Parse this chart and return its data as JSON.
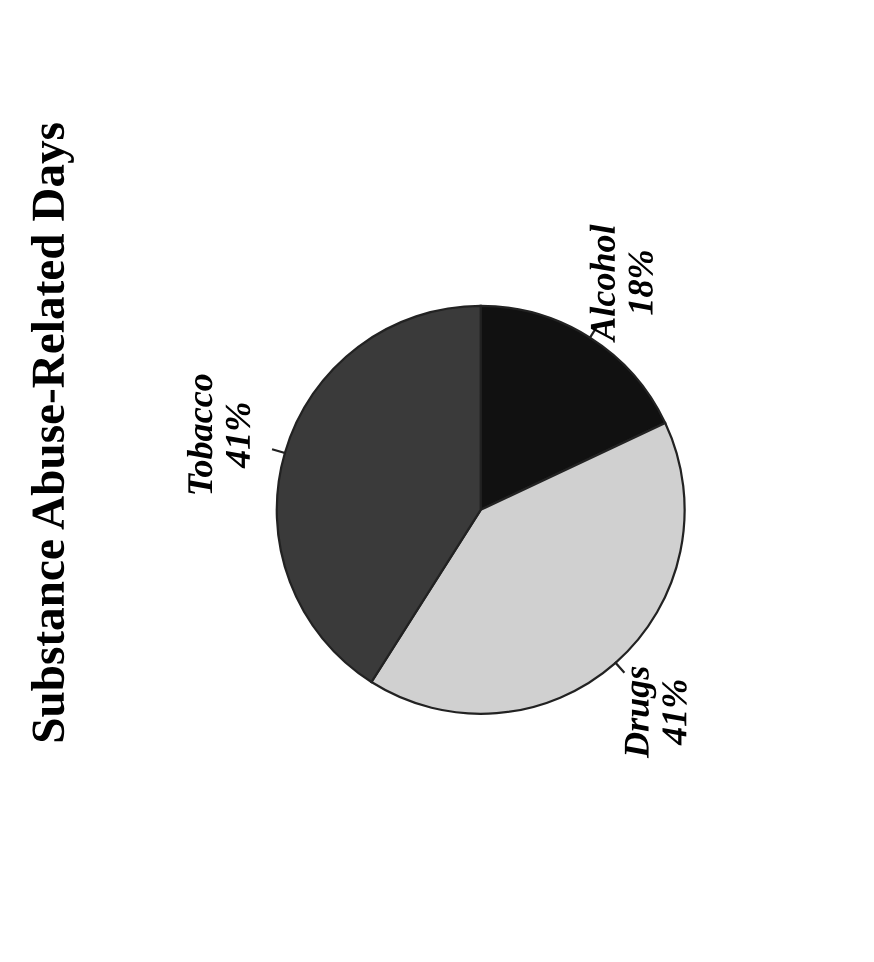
{
  "chart_data": {
    "type": "pie",
    "title": "Substance Abuse-Related Days",
    "categories": [
      "Alcohol",
      "Drugs",
      "Tobacco"
    ],
    "values": [
      18,
      41,
      41
    ],
    "value_labels": [
      "18%",
      "41%",
      "41%"
    ],
    "colors": [
      "#111111",
      "#d0d0d0",
      "#3a3a3a"
    ]
  }
}
